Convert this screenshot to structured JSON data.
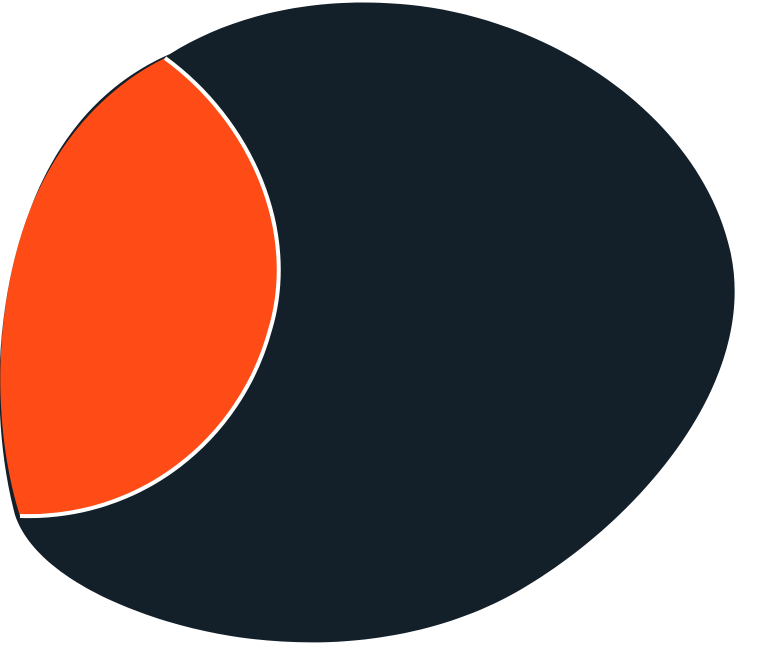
{
  "graphic": {
    "shapes": [
      {
        "name": "dark-blob",
        "fill": "#131f29"
      },
      {
        "name": "orange-crescent",
        "fill": "#ff4c17",
        "outline": "#ffffff"
      }
    ]
  }
}
